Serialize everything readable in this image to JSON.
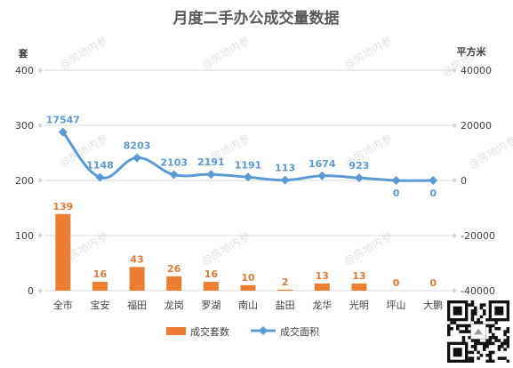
{
  "watermark_text": "@房地内参",
  "chart_data": {
    "type": "bar+line",
    "title": "月度二手办公成交量数据",
    "left_unit": "套",
    "right_unit": "平方米",
    "categories": [
      "全市",
      "宝安",
      "福田",
      "龙岗",
      "罗湖",
      "南山",
      "盐田",
      "龙华",
      "光明",
      "坪山",
      "大鹏"
    ],
    "series": [
      {
        "name": "成交套数",
        "type": "bar",
        "axis": "left",
        "color": "#ed7d31",
        "values": [
          139,
          16,
          43,
          26,
          16,
          10,
          2,
          13,
          13,
          0,
          0
        ]
      },
      {
        "name": "成交面积",
        "type": "line",
        "axis": "right",
        "color": "#5b9bd5",
        "values": [
          17547,
          1148,
          8203,
          2103,
          2191,
          1191,
          113,
          1674,
          923,
          0,
          0
        ]
      }
    ],
    "left_axis": {
      "min": 0,
      "max": 400,
      "ticks": [
        0,
        100,
        200,
        300,
        400
      ]
    },
    "right_axis": {
      "min": -40000,
      "max": 40000,
      "ticks": [
        -40000,
        -20000,
        0,
        20000,
        40000
      ]
    },
    "grid": true,
    "legend_position": "bottom"
  }
}
